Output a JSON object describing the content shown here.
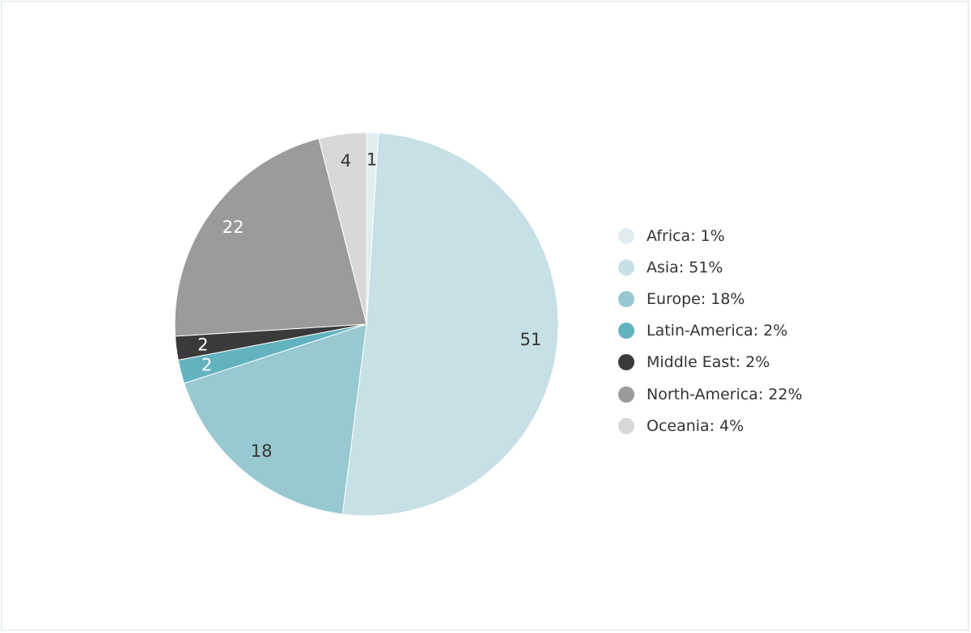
{
  "chart_data": {
    "type": "pie",
    "title": "",
    "slices": [
      {
        "label": "Africa",
        "value": 1,
        "value_label": "1",
        "legend": "Africa: 1%",
        "color": "#e1eef0",
        "label_color": "#333333"
      },
      {
        "label": "Asia",
        "value": 51,
        "value_label": "51",
        "legend": "Asia: 51%",
        "color": "#c6e0e5",
        "label_color": "#333333"
      },
      {
        "label": "Europe",
        "value": 18,
        "value_label": "18",
        "legend": "Europe: 18%",
        "color": "#98c8d0",
        "label_color": "#333333"
      },
      {
        "label": "Latin-America",
        "value": 2,
        "value_label": "2",
        "legend": "Latin-America: 2%",
        "color": "#62b3bf",
        "label_color": "#ffffff"
      },
      {
        "label": "Middle East",
        "value": 2,
        "value_label": "2",
        "legend": "Middle East: 2%",
        "color": "#3a3a3a",
        "label_color": "#ffffff"
      },
      {
        "label": "North-America",
        "value": 22,
        "value_label": "22",
        "legend": "North-America: 22%",
        "color": "#9b9b9a",
        "label_color": "#ffffff"
      },
      {
        "label": "Oceania",
        "value": 4,
        "value_label": "4",
        "legend": "Oceania: 4%",
        "color": "#d8d8d8",
        "label_color": "#333333"
      }
    ],
    "start_angle_deg": 0,
    "direction": "clockwise",
    "legend_position": "right"
  }
}
